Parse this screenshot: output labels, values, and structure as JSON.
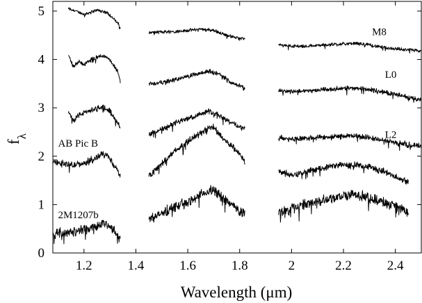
{
  "chart_data": {
    "type": "line",
    "xlabel": "Wavelength (μm)",
    "ylabel": {
      "main": "f",
      "sub": "λ"
    },
    "xlim": [
      1.08,
      2.5
    ],
    "ylim": [
      0,
      5.2
    ],
    "xticks": [
      {
        "value": 1.2,
        "label": "1.2"
      },
      {
        "value": 1.4,
        "label": "1.4"
      },
      {
        "value": 1.6,
        "label": "1.6"
      },
      {
        "value": 1.8,
        "label": "1.8"
      },
      {
        "value": 2.0,
        "label": "2"
      },
      {
        "value": 2.2,
        "label": "2.2"
      },
      {
        "value": 2.4,
        "label": "2.4"
      }
    ],
    "yticks": [
      {
        "value": 0,
        "label": "0"
      },
      {
        "value": 1,
        "label": "1"
      },
      {
        "value": 2,
        "label": "2"
      },
      {
        "value": 3,
        "label": "3"
      },
      {
        "value": 4,
        "label": "4"
      },
      {
        "value": 5,
        "label": "5"
      }
    ],
    "grid": false,
    "legend": "none",
    "line_color": "#000000",
    "series": [
      {
        "name": "M8",
        "label_at": [
          2.31,
          4.5
        ],
        "noise": 0.03,
        "segments": [
          {
            "x": [
              1.14,
              1.17,
              1.2,
              1.25,
              1.29,
              1.31,
              1.33,
              1.34
            ],
            "y": [
              5.05,
              5.0,
              4.93,
              5.02,
              4.97,
              4.86,
              4.75,
              4.65
            ]
          },
          {
            "x": [
              1.45,
              1.5,
              1.55,
              1.6,
              1.65,
              1.7,
              1.75,
              1.8,
              1.82
            ],
            "y": [
              4.55,
              4.57,
              4.58,
              4.6,
              4.63,
              4.6,
              4.5,
              4.43,
              4.45
            ]
          },
          {
            "x": [
              1.95,
              2.0,
              2.05,
              2.1,
              2.15,
              2.2,
              2.25,
              2.3,
              2.35,
              2.4,
              2.45,
              2.5
            ],
            "y": [
              4.3,
              4.28,
              4.27,
              4.29,
              4.31,
              4.32,
              4.33,
              4.3,
              4.25,
              4.22,
              4.2,
              4.17
            ]
          }
        ]
      },
      {
        "name": "L0",
        "label_at": [
          2.36,
          3.62
        ],
        "noise": 0.04,
        "segments": [
          {
            "x": [
              1.14,
              1.16,
              1.18,
              1.2,
              1.23,
              1.27,
              1.29,
              1.31,
              1.33,
              1.34
            ],
            "y": [
              4.1,
              3.85,
              3.95,
              3.9,
              4.0,
              4.08,
              4.05,
              3.9,
              3.75,
              3.55
            ]
          },
          {
            "x": [
              1.45,
              1.5,
              1.55,
              1.6,
              1.65,
              1.68,
              1.72,
              1.76,
              1.8,
              1.82
            ],
            "y": [
              3.5,
              3.52,
              3.58,
              3.65,
              3.72,
              3.76,
              3.7,
              3.55,
              3.45,
              3.4
            ]
          },
          {
            "x": [
              1.95,
              2.0,
              2.05,
              2.1,
              2.15,
              2.2,
              2.25,
              2.3,
              2.35,
              2.4,
              2.45,
              2.5
            ],
            "y": [
              3.35,
              3.34,
              3.35,
              3.37,
              3.39,
              3.4,
              3.41,
              3.38,
              3.33,
              3.28,
              3.22,
              3.16
            ]
          }
        ]
      },
      {
        "name": "L2",
        "label_at": [
          2.36,
          2.38
        ],
        "noise": 0.05,
        "segments": [
          {
            "x": [
              1.14,
              1.16,
              1.18,
              1.2,
              1.23,
              1.27,
              1.29,
              1.31,
              1.33,
              1.34
            ],
            "y": [
              2.9,
              2.75,
              2.85,
              2.9,
              2.95,
              3.02,
              3.0,
              2.85,
              2.7,
              2.62
            ]
          },
          {
            "x": [
              1.45,
              1.5,
              1.55,
              1.6,
              1.65,
              1.68,
              1.72,
              1.76,
              1.8,
              1.82
            ],
            "y": [
              2.45,
              2.55,
              2.68,
              2.78,
              2.88,
              2.93,
              2.86,
              2.72,
              2.6,
              2.58
            ]
          },
          {
            "x": [
              1.95,
              2.0,
              2.05,
              2.1,
              2.15,
              2.2,
              2.25,
              2.3,
              2.35,
              2.4,
              2.45,
              2.5
            ],
            "y": [
              2.38,
              2.36,
              2.36,
              2.38,
              2.4,
              2.41,
              2.42,
              2.38,
              2.33,
              2.28,
              2.24,
              2.2
            ]
          }
        ]
      },
      {
        "name": "AB Pic B",
        "label_at": [
          1.1,
          2.2
        ],
        "noise": 0.06,
        "segments": [
          {
            "x": [
              1.08,
              1.12,
              1.16,
              1.2,
              1.24,
              1.27,
              1.29,
              1.31,
              1.33,
              1.34
            ],
            "y": [
              1.9,
              1.85,
              1.82,
              1.85,
              1.95,
              2.05,
              2.02,
              1.85,
              1.7,
              1.6
            ]
          },
          {
            "x": [
              1.45,
              1.5,
              1.55,
              1.6,
              1.65,
              1.68,
              1.7,
              1.72,
              1.76,
              1.8,
              1.82
            ],
            "y": [
              1.6,
              1.85,
              2.1,
              2.3,
              2.48,
              2.58,
              2.6,
              2.45,
              2.25,
              2.05,
              1.9
            ]
          },
          {
            "x": [
              1.95,
              2.0,
              2.05,
              2.1,
              2.15,
              2.2,
              2.25,
              2.3,
              2.35,
              2.4,
              2.45
            ],
            "y": [
              1.7,
              1.62,
              1.66,
              1.73,
              1.79,
              1.82,
              1.82,
              1.78,
              1.7,
              1.58,
              1.48
            ]
          }
        ]
      },
      {
        "name": "2M1207b",
        "label_at": [
          1.1,
          0.72
        ],
        "noise": 0.09,
        "segments": [
          {
            "x": [
              1.08,
              1.12,
              1.16,
              1.2,
              1.24,
              1.27,
              1.29,
              1.31,
              1.33,
              1.34
            ],
            "y": [
              0.4,
              0.42,
              0.45,
              0.48,
              0.55,
              0.62,
              0.6,
              0.5,
              0.38,
              0.3
            ]
          },
          {
            "x": [
              1.45,
              1.5,
              1.55,
              1.6,
              1.65,
              1.68,
              1.7,
              1.72,
              1.76,
              1.8,
              1.82
            ],
            "y": [
              0.7,
              0.82,
              0.95,
              1.05,
              1.2,
              1.28,
              1.3,
              1.2,
              1.05,
              0.85,
              0.8
            ]
          },
          {
            "x": [
              1.95,
              2.0,
              2.05,
              2.1,
              2.15,
              2.2,
              2.25,
              2.3,
              2.35,
              2.4,
              2.45
            ],
            "y": [
              0.85,
              0.92,
              1.0,
              1.08,
              1.13,
              1.18,
              1.2,
              1.15,
              1.05,
              0.95,
              0.85
            ]
          }
        ]
      }
    ]
  }
}
